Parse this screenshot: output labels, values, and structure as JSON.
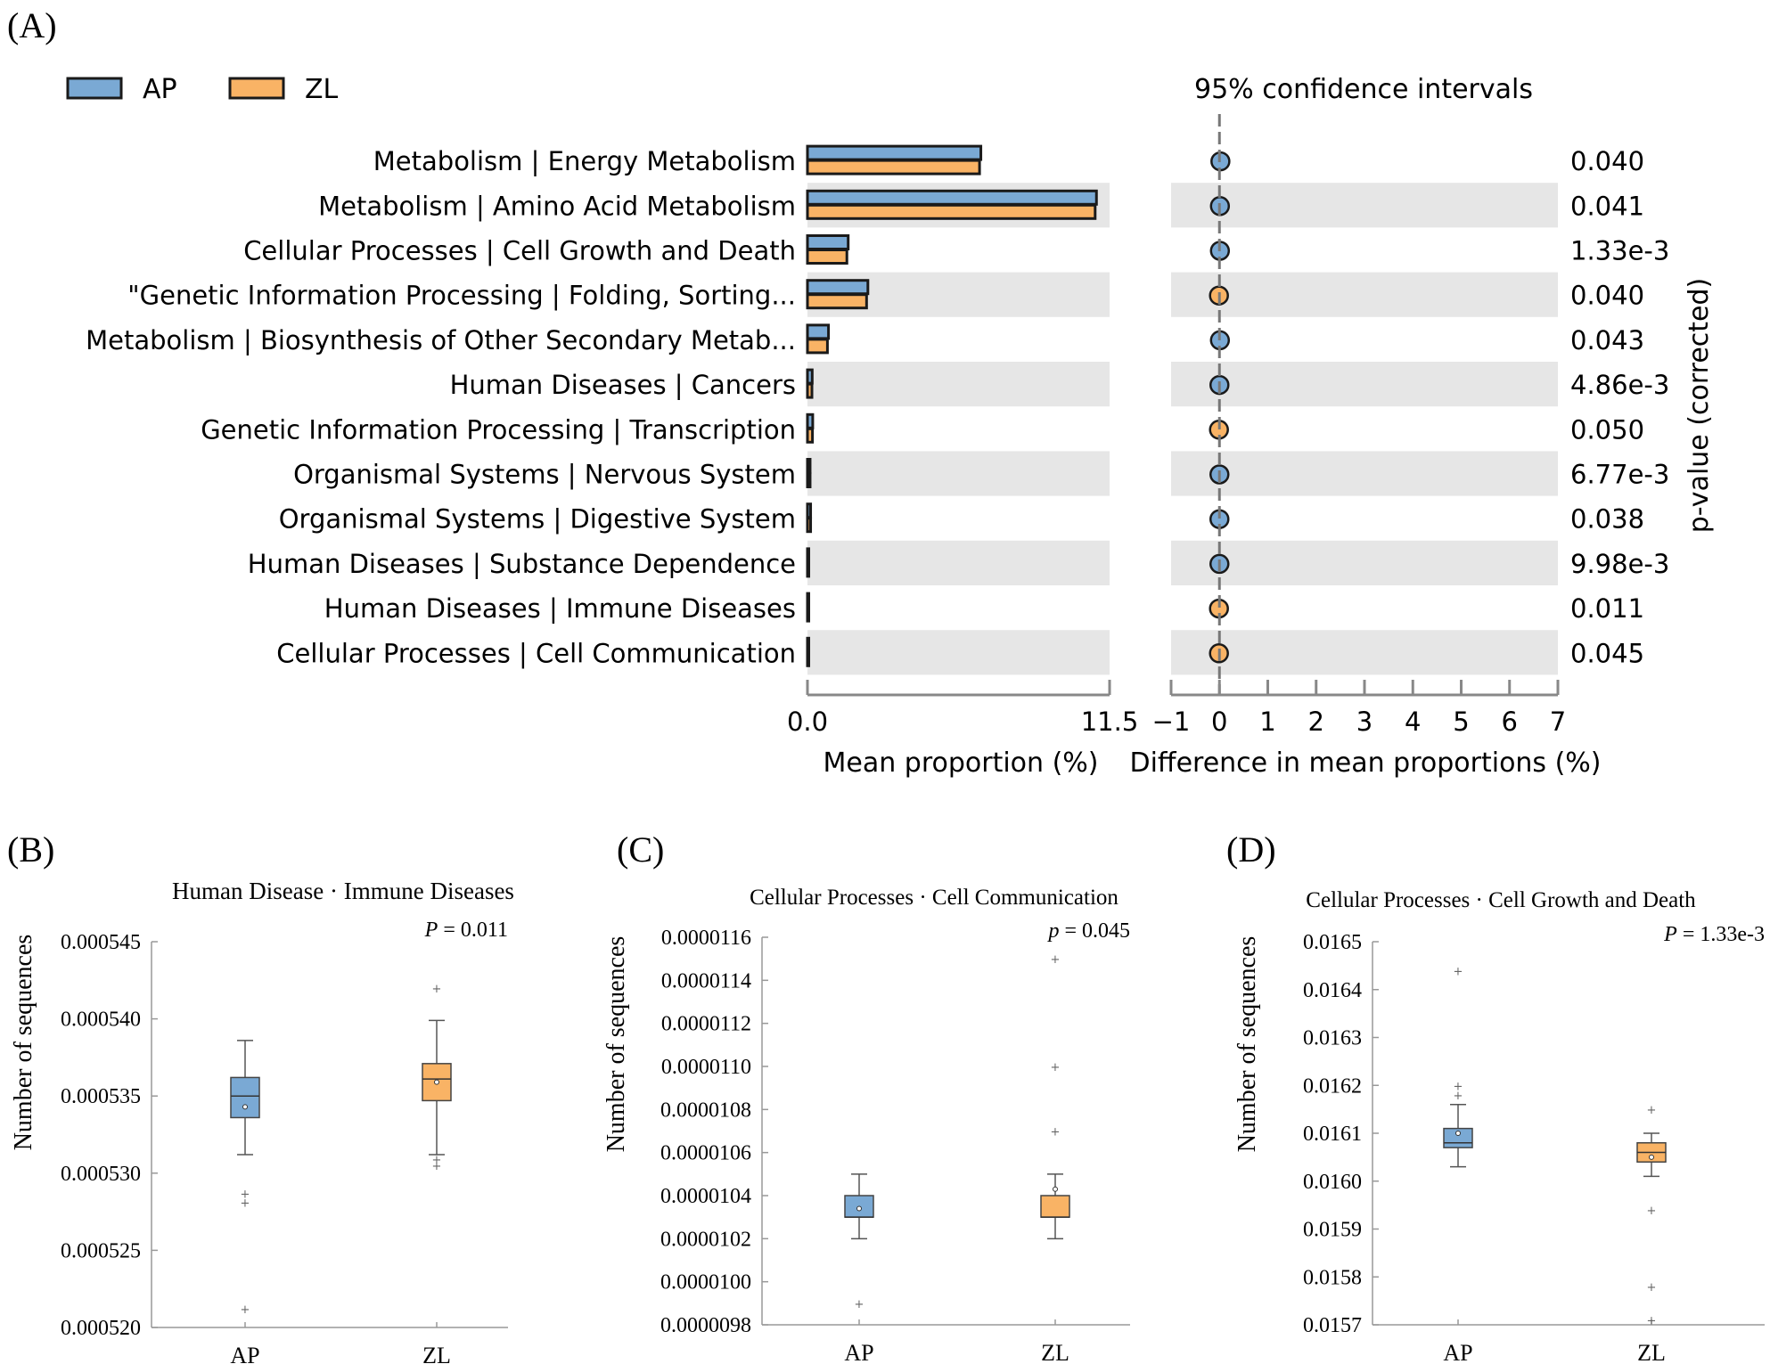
{
  "colors": {
    "ap": "#7aa9d4",
    "zl": "#f9b365",
    "stripe": "#e6e6e6",
    "axis": "#888888",
    "dark": "#1a1a1a"
  },
  "panel_a": {
    "label": "(A)",
    "legend": [
      "AP",
      "ZL"
    ],
    "ci_title": "95% confidence intervals",
    "right_axis_label": "p-value (corrected)",
    "xlabel_left": "Mean proportion (%)",
    "xlabel_right": "Difference in mean proportions (%)"
  },
  "panel_b": {
    "label": "(B)",
    "title": "Human Disease · Immune Diseases",
    "pvalue_prefix": "P",
    "pvalue": " = 0.011",
    "ylabel": "Number of sequences"
  },
  "panel_c": {
    "label": "(C)",
    "title": "Cellular Processes · Cell Communication",
    "pvalue_prefix": "p",
    "pvalue": " = 0.045",
    "ylabel": "Number of sequences"
  },
  "panel_d": {
    "label": "(D)",
    "title": "Cellular Processes · Cell Growth and Death",
    "pvalue_prefix": "P",
    "pvalue": " = 1.33e-3",
    "ylabel": "Number of sequences"
  },
  "chart_data": [
    {
      "type": "bar",
      "title": "Mean proportion (%)",
      "xlabel": "Mean proportion (%)",
      "xlim": [
        0,
        11.5
      ],
      "ticks": [
        "0.0",
        "11.5"
      ],
      "categories": [
        "Metabolism | Energy Metabolism",
        "Metabolism | Amino Acid Metabolism",
        "Cellular Processes | Cell Growth and Death",
        "\"Genetic Information Processing | Folding, Sorting...",
        "Metabolism | Biosynthesis of Other Secondary Metab...",
        "Human Diseases | Cancers",
        "Genetic Information Processing | Transcription",
        "Organismal Systems | Nervous System",
        "Organismal Systems | Digestive System",
        "Human Diseases | Substance Dependence",
        "Human Diseases | Immune Diseases",
        "Cellular Processes | Cell Communication"
      ],
      "series": [
        {
          "name": "AP",
          "values": [
            6.6,
            11.0,
            1.55,
            2.3,
            0.8,
            0.18,
            0.2,
            0.1,
            0.12,
            0.05,
            0.05,
            0.02
          ]
        },
        {
          "name": "ZL",
          "values": [
            6.55,
            10.95,
            1.5,
            2.25,
            0.76,
            0.17,
            0.19,
            0.1,
            0.12,
            0.05,
            0.05,
            0.02
          ]
        }
      ]
    },
    {
      "type": "scatter",
      "title": "95% confidence intervals",
      "xlabel": "Difference in mean proportions (%)",
      "xlim": [
        -1,
        7
      ],
      "ticks": [
        "−1",
        "0",
        "1",
        "2",
        "3",
        "4",
        "5",
        "6",
        "7"
      ],
      "differences": [
        0.02,
        0.01,
        0.01,
        -0.01,
        0.01,
        0.0,
        -0.01,
        0.0,
        0.0,
        0.0,
        -0.01,
        -0.01
      ],
      "enriched_in": [
        "AP",
        "AP",
        "AP",
        "ZL",
        "AP",
        "AP",
        "ZL",
        "AP",
        "AP",
        "AP",
        "ZL",
        "ZL"
      ],
      "pvalues": [
        "0.040",
        "0.041",
        "1.33e-3",
        "0.040",
        "0.043",
        "4.86e-3",
        "0.050",
        "6.77e-3",
        "0.038",
        "9.98e-3",
        "0.011",
        "0.045"
      ],
      "ylabel_right": "p-value (corrected)"
    },
    {
      "type": "box",
      "title": "Human Disease · Immune Diseases",
      "ylabel": "Number of sequences",
      "categories": [
        "AP",
        "ZL"
      ],
      "ylim": [
        0.00052,
        0.000545
      ],
      "yticks": [
        "0.000520",
        "0.000525",
        "0.000530",
        "0.000535",
        "0.000540",
        "0.000545"
      ],
      "boxes": [
        {
          "name": "AP",
          "min": 0.0005312,
          "q1": 0.0005336,
          "median": 0.000535,
          "q3": 0.0005362,
          "max": 0.0005386,
          "mean": 0.0005343,
          "outliers": [
            0.0005287,
            0.0005281,
            0.0005212
          ]
        },
        {
          "name": "ZL",
          "min": 0.0005312,
          "q1": 0.0005347,
          "median": 0.0005361,
          "q3": 0.0005371,
          "max": 0.0005399,
          "mean": 0.0005359,
          "outliers": [
            0.000542,
            0.0005309,
            0.0005305
          ]
        }
      ],
      "pvalue": "0.011"
    },
    {
      "type": "box",
      "title": "Cellular Processes · Cell Communication",
      "ylabel": "Number of sequences",
      "categories": [
        "AP",
        "ZL"
      ],
      "ylim": [
        9.8e-06,
        1.16e-05
      ],
      "yticks": [
        "0.0000098",
        "0.0000100",
        "0.0000102",
        "0.0000104",
        "0.0000106",
        "0.0000108",
        "0.0000110",
        "0.0000112",
        "0.0000114",
        "0.0000116"
      ],
      "boxes": [
        {
          "name": "AP",
          "min": 1.02e-05,
          "q1": 1.03e-05,
          "median": 1.03e-05,
          "q3": 1.04e-05,
          "max": 1.05e-05,
          "mean": 1.034e-05,
          "outliers": [
            9.9e-06
          ]
        },
        {
          "name": "ZL",
          "min": 1.02e-05,
          "q1": 1.03e-05,
          "median": 1.03e-05,
          "q3": 1.04e-05,
          "max": 1.05e-05,
          "mean": 1.043e-05,
          "outliers": [
            1.07e-05,
            1.1e-05,
            1.15e-05
          ]
        }
      ],
      "pvalue": "0.045"
    },
    {
      "type": "box",
      "title": "Cellular Processes · Cell Growth and Death",
      "ylabel": "Number of sequences",
      "categories": [
        "AP",
        "ZL"
      ],
      "ylim": [
        0.0157,
        0.0165
      ],
      "yticks": [
        "0.0157",
        "0.0158",
        "0.0159",
        "0.0160",
        "0.0161",
        "0.0162",
        "0.0163",
        "0.0164",
        "0.0165"
      ],
      "boxes": [
        {
          "name": "AP",
          "min": 0.01603,
          "q1": 0.01607,
          "median": 0.01608,
          "q3": 0.01611,
          "max": 0.01616,
          "mean": 0.0161,
          "outliers": [
            0.01618,
            0.0162,
            0.01644
          ]
        },
        {
          "name": "ZL",
          "min": 0.01601,
          "q1": 0.01604,
          "median": 0.01606,
          "q3": 0.01608,
          "max": 0.0161,
          "mean": 0.01605,
          "outliers": [
            0.01615,
            0.01594,
            0.01578,
            0.01571
          ]
        }
      ],
      "pvalue": "1.33e-3"
    }
  ]
}
